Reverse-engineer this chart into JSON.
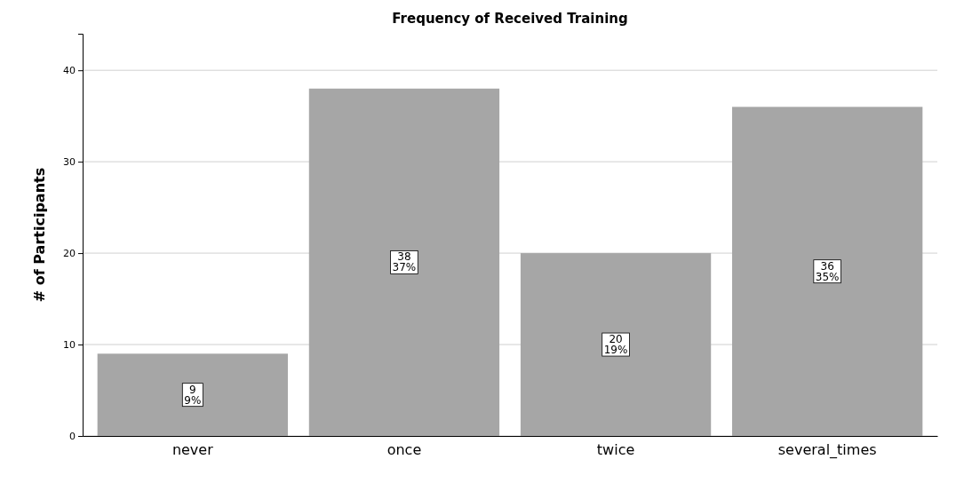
{
  "chart_data": {
    "type": "bar",
    "title": "Frequency of Received Training",
    "ylabel": "# of Participants",
    "categories": [
      "never",
      "once",
      "twice",
      "several_times"
    ],
    "values": [
      9,
      38,
      20,
      36
    ],
    "value_labels": [
      "9\n9%",
      "38\n37%",
      "20\n19%",
      "36\n35%"
    ],
    "color": "#a6a6a6",
    "ylim": [
      0,
      44
    ],
    "yticks": [
      0,
      10,
      20,
      30,
      40
    ],
    "grid": "y"
  }
}
